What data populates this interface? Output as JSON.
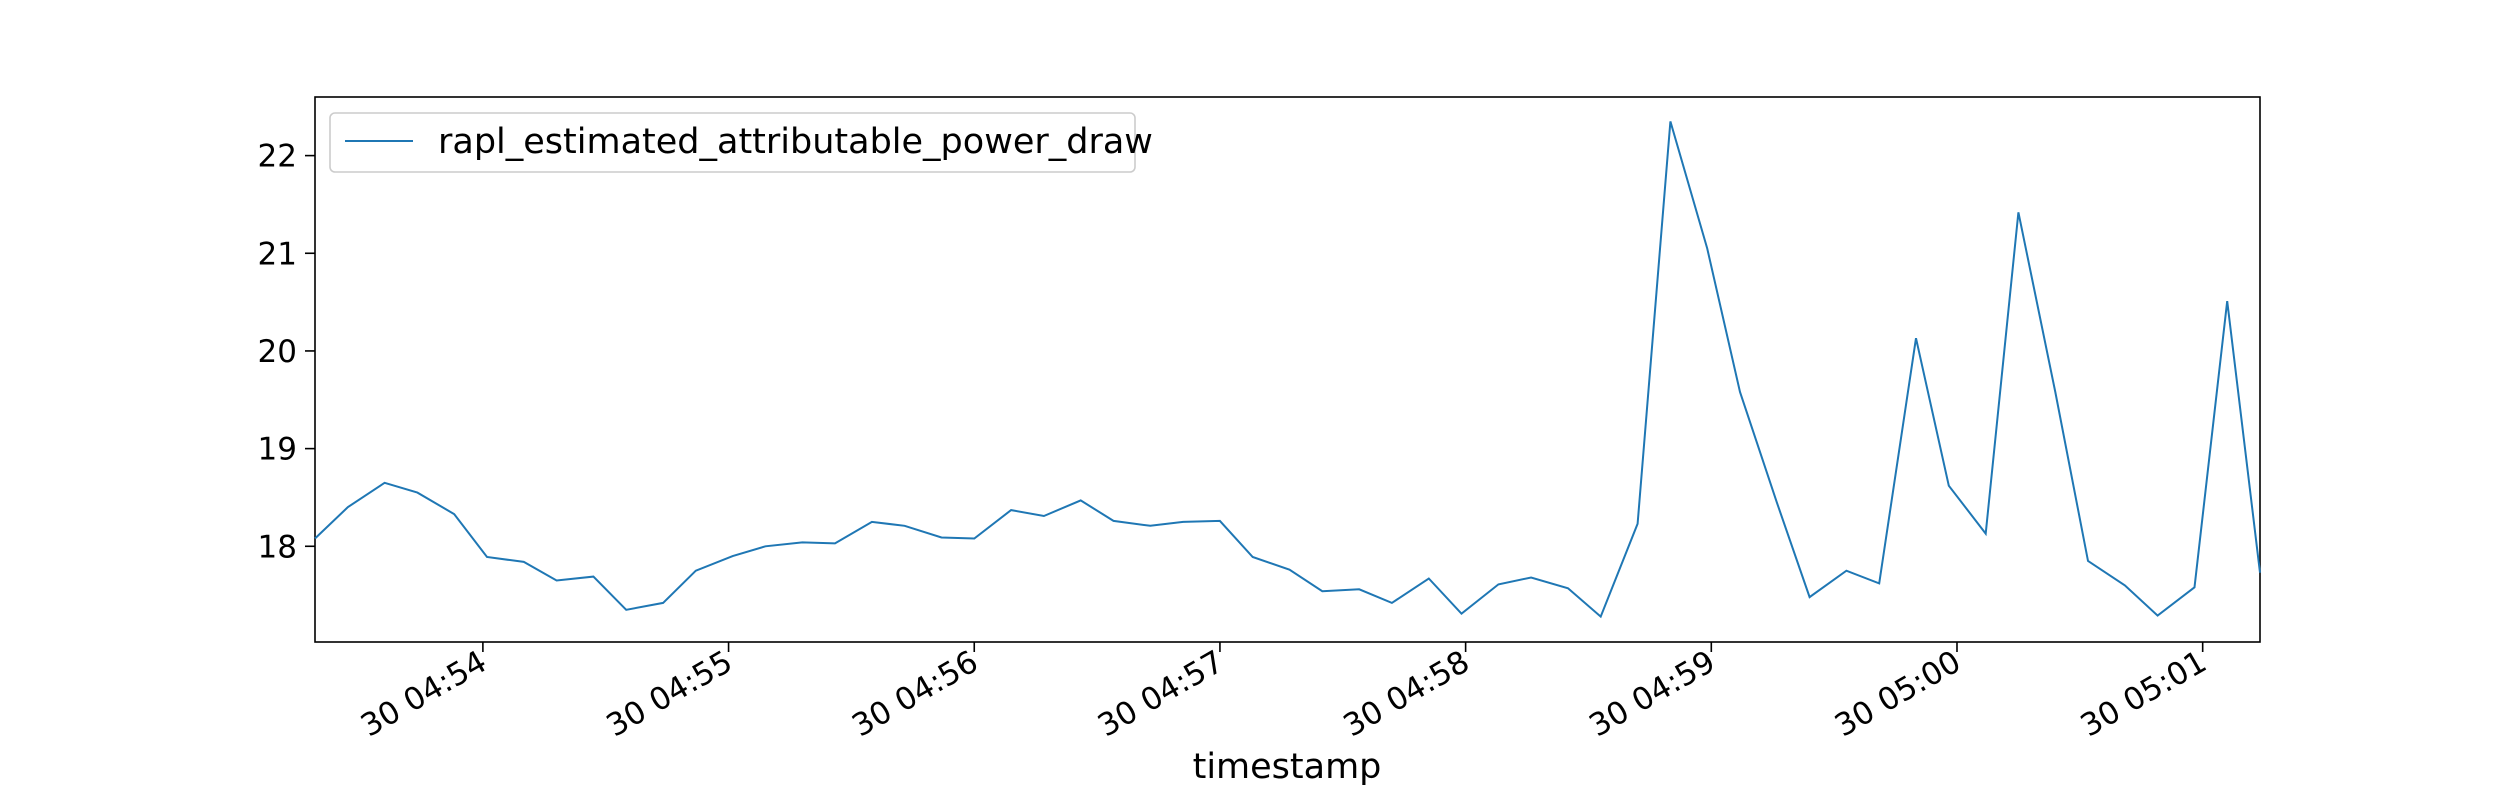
{
  "chart_data": {
    "type": "line",
    "title": "",
    "xlabel": "timestamp",
    "ylabel": "",
    "x_tick_labels": [
      "30 04:54",
      "30 04:55",
      "30 04:56",
      "30 04:57",
      "30 04:58",
      "30 04:59",
      "30 05:00",
      "30 05:01"
    ],
    "x_tick_times": [
      "04:54:00",
      "04:55:00",
      "04:56:00",
      "04:57:00",
      "04:58:00",
      "04:59:00",
      "05:00:00",
      "05:01:00"
    ],
    "y_ticks": [
      18,
      19,
      20,
      21,
      22
    ],
    "xlim": [
      "04:53:19",
      "05:01:14"
    ],
    "ylim": [
      17.02,
      22.6
    ],
    "grid": false,
    "legend_position": "upper left",
    "series": [
      {
        "name": "rapl_estimated_attributable_power_draw",
        "color": "#1f77b4",
        "x": [
          "04:53:19",
          "04:53:27",
          "04:53:36",
          "04:53:44",
          "04:53:53",
          "04:54:01",
          "04:54:10",
          "04:54:18",
          "04:54:27",
          "04:54:35",
          "04:54:44",
          "04:54:52",
          "04:55:01",
          "04:55:09",
          "04:55:18",
          "04:55:26",
          "04:55:35",
          "04:55:43",
          "04:55:52",
          "04:56:00",
          "04:56:09",
          "04:56:17",
          "04:56:26",
          "04:56:34",
          "04:56:43",
          "04:56:51",
          "04:57:00",
          "04:57:08",
          "04:57:17",
          "04:57:25",
          "04:57:34",
          "04:57:42",
          "04:57:51",
          "04:57:59",
          "04:58:08",
          "04:58:16",
          "04:58:25",
          "04:58:33",
          "04:58:42",
          "04:58:50",
          "04:58:59",
          "04:59:07",
          "04:59:16",
          "04:59:24",
          "04:59:33",
          "04:59:41",
          "04:59:50",
          "04:59:58",
          "05:00:07",
          "05:00:15",
          "05:00:24",
          "05:00:32",
          "05:00:41",
          "05:00:49",
          "05:00:58",
          "05:01:06",
          "05:01:14"
        ],
        "y": [
          18.08,
          18.4,
          18.65,
          18.55,
          18.33,
          17.89,
          17.84,
          17.65,
          17.69,
          17.35,
          17.42,
          17.75,
          17.9,
          18.0,
          18.04,
          18.03,
          18.25,
          18.21,
          18.09,
          18.08,
          18.37,
          18.31,
          18.47,
          18.26,
          18.21,
          18.25,
          18.26,
          17.89,
          17.76,
          17.54,
          17.56,
          17.42,
          17.67,
          17.31,
          17.61,
          17.68,
          17.57,
          17.28,
          18.23,
          22.35,
          21.05,
          19.58,
          18.45,
          17.48,
          17.75,
          17.62,
          20.13,
          18.62,
          18.13,
          21.42,
          19.58,
          17.85,
          17.6,
          17.29,
          17.58,
          20.51,
          17.73
        ]
      }
    ]
  }
}
